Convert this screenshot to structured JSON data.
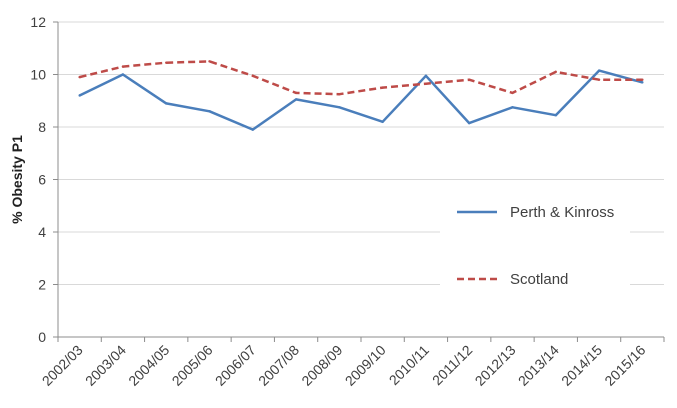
{
  "chart_data": {
    "type": "line",
    "title": "",
    "xlabel": "",
    "ylabel": "% Obesity P1",
    "ylim": [
      0,
      12
    ],
    "yticks": [
      0,
      2,
      4,
      6,
      8,
      10,
      12
    ],
    "grid": "horizontal",
    "legend_position": "right",
    "categories": [
      "2002/03",
      "2003/04",
      "2004/05",
      "2005/06",
      "2006/07",
      "2007/08",
      "2008/09",
      "2009/10",
      "2010/11",
      "2011/12",
      "2012/13",
      "2013/14",
      "2014/15",
      "2015/16"
    ],
    "series": [
      {
        "name": "Perth & Kinross",
        "color": "#4a7ebb",
        "style": "solid",
        "values": [
          9.2,
          10.0,
          8.9,
          8.6,
          7.9,
          9.05,
          8.75,
          8.2,
          9.95,
          8.15,
          8.75,
          8.45,
          10.15,
          9.7
        ]
      },
      {
        "name": "Scotland",
        "color": "#be4b48",
        "style": "dashed",
        "values": [
          9.9,
          10.3,
          10.45,
          10.5,
          9.95,
          9.3,
          9.25,
          9.5,
          9.65,
          9.8,
          9.3,
          10.1,
          9.8,
          9.8
        ]
      }
    ]
  }
}
